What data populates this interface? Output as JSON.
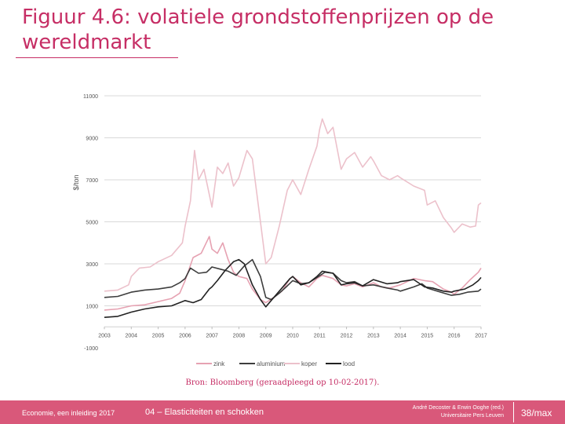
{
  "slide": {
    "title": "Figuur 4.6: volatiele grondstoffenprijzen op de wereldmarkt",
    "source": "Bron: Bloomberg (geraadpleegd op 10-02-2017).",
    "footer_left": "Economie, een inleiding 2017",
    "footer_center": "04 – Elasticiteiten en schokken",
    "footer_right_line1": "André Decoster & Erwin Ooghe (red.)",
    "footer_right_line2": "Universitaire Pers Leuven",
    "page": "38/max"
  },
  "chart_data": {
    "type": "line",
    "title": "",
    "xlabel": "",
    "ylabel": "$/ton",
    "ylim": [
      -1000,
      11000
    ],
    "xlim": [
      2003,
      2017
    ],
    "y_ticks": [
      -1000,
      1000,
      3000,
      5000,
      7000,
      9000,
      11000
    ],
    "y_tick_labels": [
      "-1000",
      "1000",
      "3000",
      "5000",
      "7000",
      "9000",
      "11000"
    ],
    "x_tick_labels": [
      "2003",
      "2004",
      "2005",
      "2006",
      "2007",
      "2008",
      "2009",
      "2010",
      "2011",
      "2012",
      "2013",
      "2014",
      "2015",
      "2016",
      "2017"
    ],
    "grid": true,
    "legend_position": "bottom",
    "series": [
      {
        "name": "zink",
        "color": "#e6a2b2",
        "points": [
          [
            2003.0,
            800
          ],
          [
            2003.5,
            850
          ],
          [
            2004.0,
            1000
          ],
          [
            2004.5,
            1050
          ],
          [
            2005.0,
            1200
          ],
          [
            2005.5,
            1350
          ],
          [
            2005.8,
            1600
          ],
          [
            2006.0,
            2200
          ],
          [
            2006.3,
            3300
          ],
          [
            2006.6,
            3500
          ],
          [
            2006.9,
            4300
          ],
          [
            2007.0,
            3700
          ],
          [
            2007.2,
            3500
          ],
          [
            2007.4,
            4000
          ],
          [
            2007.6,
            3200
          ],
          [
            2007.8,
            2600
          ],
          [
            2008.0,
            2400
          ],
          [
            2008.3,
            2300
          ],
          [
            2008.5,
            1800
          ],
          [
            2008.8,
            1300
          ],
          [
            2009.0,
            1150
          ],
          [
            2009.3,
            1400
          ],
          [
            2009.6,
            1700
          ],
          [
            2009.9,
            2300
          ],
          [
            2010.0,
            2400
          ],
          [
            2010.3,
            2100
          ],
          [
            2010.6,
            1900
          ],
          [
            2010.9,
            2300
          ],
          [
            2011.1,
            2450
          ],
          [
            2011.5,
            2300
          ],
          [
            2011.8,
            2000
          ],
          [
            2012.0,
            1950
          ],
          [
            2012.3,
            2050
          ],
          [
            2012.6,
            1900
          ],
          [
            2013.0,
            2100
          ],
          [
            2013.3,
            1900
          ],
          [
            2013.6,
            1850
          ],
          [
            2014.0,
            2000
          ],
          [
            2014.5,
            2300
          ],
          [
            2014.9,
            2200
          ],
          [
            2015.2,
            2150
          ],
          [
            2015.6,
            1800
          ],
          [
            2015.9,
            1650
          ],
          [
            2016.0,
            1550
          ],
          [
            2016.3,
            1850
          ],
          [
            2016.6,
            2250
          ],
          [
            2016.9,
            2600
          ],
          [
            2017.0,
            2800
          ]
        ]
      },
      {
        "name": "aluminium",
        "color": "#3d3d3d",
        "points": [
          [
            2003.0,
            1400
          ],
          [
            2003.5,
            1450
          ],
          [
            2004.0,
            1650
          ],
          [
            2004.5,
            1750
          ],
          [
            2005.0,
            1800
          ],
          [
            2005.5,
            1900
          ],
          [
            2005.8,
            2100
          ],
          [
            2006.0,
            2300
          ],
          [
            2006.2,
            2800
          ],
          [
            2006.5,
            2550
          ],
          [
            2006.8,
            2600
          ],
          [
            2007.0,
            2850
          ],
          [
            2007.3,
            2750
          ],
          [
            2007.6,
            2650
          ],
          [
            2007.9,
            2450
          ],
          [
            2008.2,
            2900
          ],
          [
            2008.5,
            3200
          ],
          [
            2008.8,
            2400
          ],
          [
            2009.0,
            1400
          ],
          [
            2009.2,
            1300
          ],
          [
            2009.5,
            1600
          ],
          [
            2009.8,
            1950
          ],
          [
            2010.0,
            2200
          ],
          [
            2010.3,
            2050
          ],
          [
            2010.6,
            2100
          ],
          [
            2010.9,
            2350
          ],
          [
            2011.2,
            2600
          ],
          [
            2011.5,
            2550
          ],
          [
            2011.8,
            2200
          ],
          [
            2012.0,
            2100
          ],
          [
            2012.3,
            2150
          ],
          [
            2012.6,
            1950
          ],
          [
            2013.0,
            2000
          ],
          [
            2013.5,
            1850
          ],
          [
            2013.9,
            1750
          ],
          [
            2014.0,
            1700
          ],
          [
            2014.5,
            1900
          ],
          [
            2014.8,
            2050
          ],
          [
            2015.0,
            1850
          ],
          [
            2015.5,
            1650
          ],
          [
            2015.9,
            1500
          ],
          [
            2016.2,
            1550
          ],
          [
            2016.5,
            1650
          ],
          [
            2016.9,
            1700
          ],
          [
            2017.0,
            1800
          ]
        ]
      },
      {
        "name": "koper",
        "color": "#ecc1cb",
        "points": [
          [
            2003.0,
            1700
          ],
          [
            2003.5,
            1750
          ],
          [
            2003.9,
            2000
          ],
          [
            2004.0,
            2400
          ],
          [
            2004.3,
            2800
          ],
          [
            2004.7,
            2850
          ],
          [
            2005.0,
            3100
          ],
          [
            2005.5,
            3400
          ],
          [
            2005.9,
            4000
          ],
          [
            2006.0,
            4800
          ],
          [
            2006.2,
            6000
          ],
          [
            2006.35,
            8400
          ],
          [
            2006.5,
            7000
          ],
          [
            2006.7,
            7500
          ],
          [
            2006.9,
            6300
          ],
          [
            2007.0,
            5700
          ],
          [
            2007.2,
            7600
          ],
          [
            2007.4,
            7300
          ],
          [
            2007.6,
            7800
          ],
          [
            2007.8,
            6700
          ],
          [
            2008.0,
            7100
          ],
          [
            2008.3,
            8400
          ],
          [
            2008.5,
            8000
          ],
          [
            2008.8,
            5000
          ],
          [
            2009.0,
            3000
          ],
          [
            2009.2,
            3300
          ],
          [
            2009.5,
            4800
          ],
          [
            2009.8,
            6500
          ],
          [
            2010.0,
            7000
          ],
          [
            2010.3,
            6300
          ],
          [
            2010.6,
            7500
          ],
          [
            2010.9,
            8600
          ],
          [
            2011.0,
            9400
          ],
          [
            2011.1,
            9900
          ],
          [
            2011.3,
            9200
          ],
          [
            2011.5,
            9500
          ],
          [
            2011.8,
            7500
          ],
          [
            2012.0,
            8000
          ],
          [
            2012.3,
            8300
          ],
          [
            2012.6,
            7600
          ],
          [
            2012.9,
            8100
          ],
          [
            2013.0,
            7900
          ],
          [
            2013.3,
            7200
          ],
          [
            2013.6,
            7000
          ],
          [
            2013.9,
            7200
          ],
          [
            2014.0,
            7100
          ],
          [
            2014.5,
            6700
          ],
          [
            2014.9,
            6500
          ],
          [
            2015.0,
            5800
          ],
          [
            2015.3,
            6000
          ],
          [
            2015.6,
            5200
          ],
          [
            2015.9,
            4700
          ],
          [
            2016.0,
            4500
          ],
          [
            2016.3,
            4900
          ],
          [
            2016.6,
            4750
          ],
          [
            2016.8,
            4800
          ],
          [
            2016.9,
            5800
          ],
          [
            2017.0,
            5900
          ]
        ]
      },
      {
        "name": "lood",
        "color": "#222222",
        "points": [
          [
            2003.0,
            450
          ],
          [
            2003.5,
            500
          ],
          [
            2004.0,
            700
          ],
          [
            2004.5,
            850
          ],
          [
            2005.0,
            950
          ],
          [
            2005.5,
            1000
          ],
          [
            2005.9,
            1200
          ],
          [
            2006.0,
            1250
          ],
          [
            2006.3,
            1150
          ],
          [
            2006.6,
            1300
          ],
          [
            2006.9,
            1800
          ],
          [
            2007.0,
            1900
          ],
          [
            2007.2,
            2200
          ],
          [
            2007.5,
            2700
          ],
          [
            2007.8,
            3100
          ],
          [
            2008.0,
            3200
          ],
          [
            2008.2,
            3000
          ],
          [
            2008.5,
            2000
          ],
          [
            2008.8,
            1300
          ],
          [
            2009.0,
            950
          ],
          [
            2009.3,
            1400
          ],
          [
            2009.6,
            1850
          ],
          [
            2009.9,
            2300
          ],
          [
            2010.0,
            2400
          ],
          [
            2010.3,
            2000
          ],
          [
            2010.6,
            2100
          ],
          [
            2010.9,
            2400
          ],
          [
            2011.1,
            2650
          ],
          [
            2011.5,
            2550
          ],
          [
            2011.8,
            2000
          ],
          [
            2012.0,
            2050
          ],
          [
            2012.3,
            2100
          ],
          [
            2012.6,
            1950
          ],
          [
            2013.0,
            2250
          ],
          [
            2013.5,
            2050
          ],
          [
            2013.9,
            2100
          ],
          [
            2014.0,
            2150
          ],
          [
            2014.5,
            2250
          ],
          [
            2014.9,
            1900
          ],
          [
            2015.2,
            1850
          ],
          [
            2015.6,
            1700
          ],
          [
            2015.9,
            1650
          ],
          [
            2016.0,
            1700
          ],
          [
            2016.4,
            1800
          ],
          [
            2016.7,
            2000
          ],
          [
            2016.9,
            2200
          ],
          [
            2017.0,
            2350
          ]
        ]
      }
    ]
  }
}
